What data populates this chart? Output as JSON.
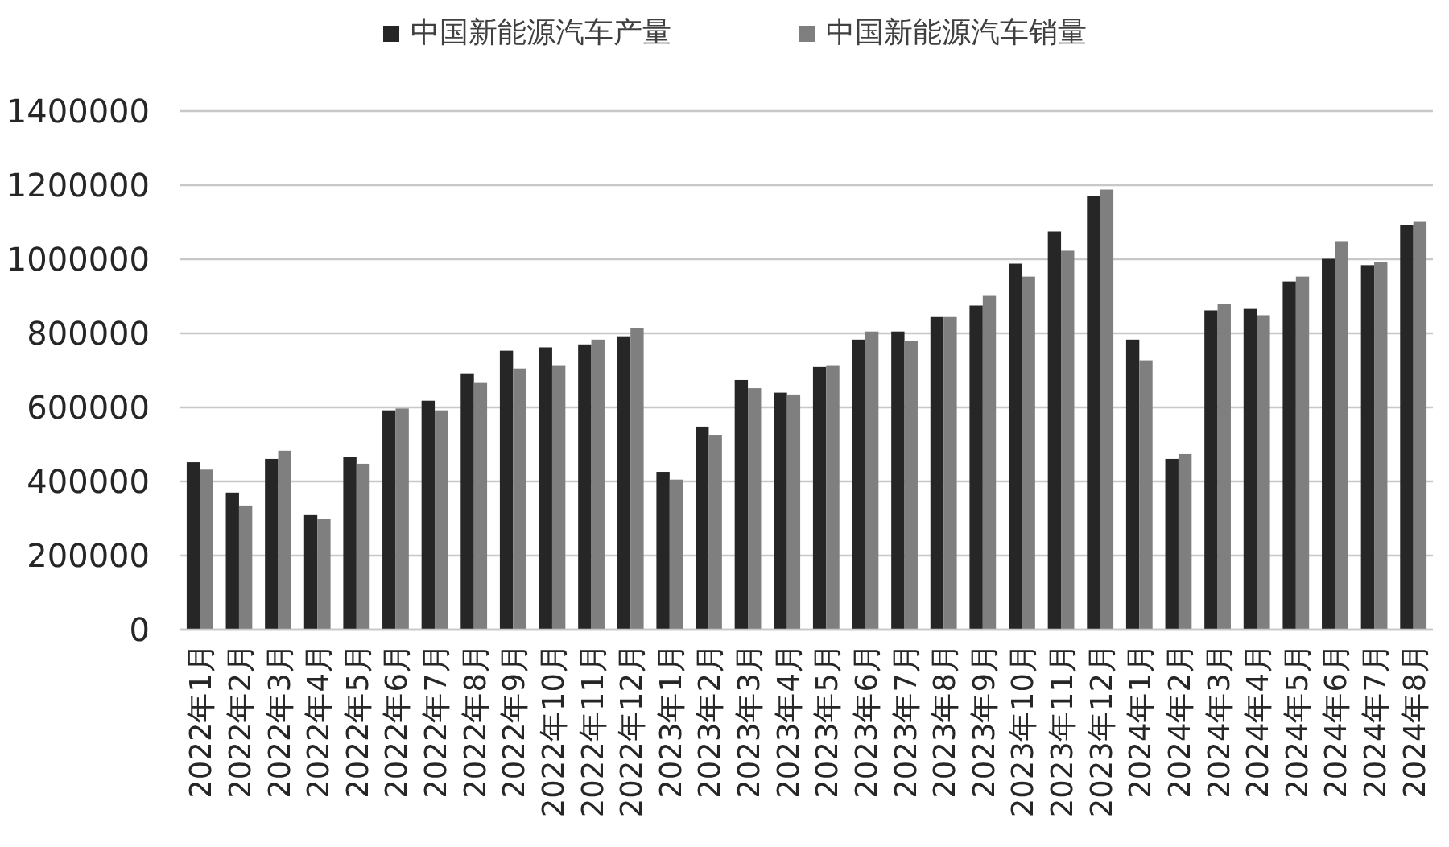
{
  "chart_data": {
    "type": "bar",
    "categories": [
      "2022年1月",
      "2022年2月",
      "2022年3月",
      "2022年4月",
      "2022年5月",
      "2022年6月",
      "2022年7月",
      "2022年8月",
      "2022年9月",
      "2022年10月",
      "2022年11月",
      "2022年12月",
      "2023年1月",
      "2023年2月",
      "2023年3月",
      "2023年4月",
      "2023年5月",
      "2023年6月",
      "2023年7月",
      "2023年8月",
      "2023年9月",
      "2023年10月",
      "2023年11月",
      "2023年12月",
      "2024年1月",
      "2024年2月",
      "2024年3月",
      "2024年4月",
      "2024年5月",
      "2024年6月",
      "2024年7月",
      "2024年8月"
    ],
    "series": [
      {
        "name": "中国新能源汽车产量",
        "color": "#262626",
        "values": [
          452000,
          370000,
          461000,
          309000,
          466000,
          592000,
          618000,
          692000,
          753000,
          762000,
          770000,
          792000,
          426000,
          548000,
          674000,
          640000,
          709000,
          783000,
          805000,
          844000,
          875000,
          988000,
          1075000,
          1171000,
          783000,
          461000,
          862000,
          866000,
          940000,
          1001000,
          984000,
          1092000
        ]
      },
      {
        "name": "中国新能源汽车销量",
        "color": "#7f7f7f",
        "values": [
          432000,
          335000,
          483000,
          300000,
          448000,
          597000,
          592000,
          666000,
          705000,
          714000,
          783000,
          814000,
          405000,
          526000,
          652000,
          635000,
          714000,
          805000,
          779000,
          844000,
          901000,
          953000,
          1023000,
          1188000,
          727000,
          474000,
          880000,
          849000,
          953000,
          1049000,
          992000,
          1101000
        ]
      }
    ],
    "ylim": [
      0,
      1400000
    ],
    "yticks": [
      0,
      200000,
      400000,
      600000,
      800000,
      1000000,
      1200000,
      1400000
    ],
    "grid": "y",
    "legend": "top"
  }
}
